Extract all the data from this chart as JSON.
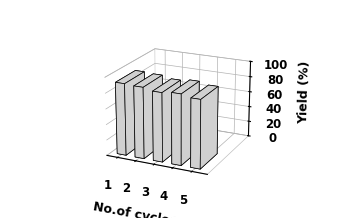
{
  "categories": [
    "1",
    "2",
    "3",
    "4",
    "5"
  ],
  "values": [
    92,
    91,
    88,
    90,
    87
  ],
  "xlabel": "No.of cycles",
  "ylabel": "Yield (%)",
  "ylim": [
    0,
    100
  ],
  "yticks": [
    0,
    20,
    40,
    60,
    80,
    100
  ],
  "bar_width": 0.5,
  "bar_depth": 0.5,
  "bar_face_color": "#d0d0d0",
  "bar_edge_color": "#000000",
  "bar_hatch": "....",
  "background_color": "#ffffff",
  "xlabel_fontsize": 9,
  "ylabel_fontsize": 9,
  "tick_fontsize": 8.5,
  "pane_color": [
    1.0,
    1.0,
    1.0,
    1.0
  ],
  "grid_color": "#aaaaaa"
}
